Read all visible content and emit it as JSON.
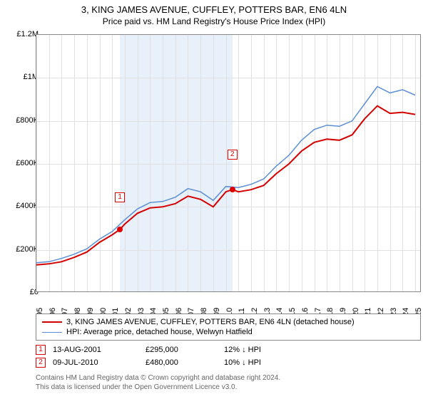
{
  "title": "3, KING JAMES AVENUE, CUFFLEY, POTTERS BAR, EN6 4LN",
  "subtitle": "Price paid vs. HM Land Registry's House Price Index (HPI)",
  "chart": {
    "type": "line",
    "background_color": "#ffffff",
    "grid_color": "#e0e0e0",
    "xlim": [
      1995,
      2025.5
    ],
    "ylim": [
      0,
      1200000
    ],
    "ytick_step": 200000,
    "yticks": [
      {
        "v": 0,
        "label": "£0"
      },
      {
        "v": 200000,
        "label": "£200K"
      },
      {
        "v": 400000,
        "label": "£400K"
      },
      {
        "v": 600000,
        "label": "£600K"
      },
      {
        "v": 800000,
        "label": "£800K"
      },
      {
        "v": 1000000,
        "label": "£1M"
      },
      {
        "v": 1200000,
        "label": "£1.2M"
      }
    ],
    "xticks": [
      1995,
      1996,
      1997,
      1998,
      1999,
      2000,
      2001,
      2002,
      2003,
      2004,
      2005,
      2006,
      2007,
      2008,
      2009,
      2010,
      2011,
      2012,
      2013,
      2014,
      2015,
      2016,
      2017,
      2018,
      2019,
      2020,
      2021,
      2022,
      2023,
      2024,
      2025
    ],
    "shaded_band": {
      "from": 2001.62,
      "to": 2010.52,
      "color": "#e8f0fa"
    },
    "series": [
      {
        "name": "address",
        "label": "3, KING JAMES AVENUE, CUFFLEY, POTTERS BAR, EN6 4LN (detached house)",
        "color": "#d40000",
        "line_width": 2,
        "data": [
          [
            1995,
            130000
          ],
          [
            1996,
            135000
          ],
          [
            1997,
            145000
          ],
          [
            1998,
            165000
          ],
          [
            1999,
            190000
          ],
          [
            2000,
            235000
          ],
          [
            2001,
            270000
          ],
          [
            2001.62,
            295000
          ],
          [
            2002,
            320000
          ],
          [
            2003,
            370000
          ],
          [
            2004,
            395000
          ],
          [
            2005,
            400000
          ],
          [
            2006,
            415000
          ],
          [
            2007,
            450000
          ],
          [
            2008,
            435000
          ],
          [
            2009,
            400000
          ],
          [
            2010,
            470000
          ],
          [
            2010.52,
            480000
          ],
          [
            2011,
            470000
          ],
          [
            2012,
            480000
          ],
          [
            2013,
            500000
          ],
          [
            2014,
            555000
          ],
          [
            2015,
            600000
          ],
          [
            2016,
            660000
          ],
          [
            2017,
            700000
          ],
          [
            2018,
            715000
          ],
          [
            2019,
            710000
          ],
          [
            2020,
            735000
          ],
          [
            2021,
            810000
          ],
          [
            2022,
            870000
          ],
          [
            2023,
            835000
          ],
          [
            2024,
            840000
          ],
          [
            2025,
            830000
          ]
        ]
      },
      {
        "name": "hpi",
        "label": "HPI: Average price, detached house, Welwyn Hatfield",
        "color": "#5b8fd6",
        "line_width": 1.5,
        "data": [
          [
            1995,
            140000
          ],
          [
            1996,
            145000
          ],
          [
            1997,
            160000
          ],
          [
            1998,
            180000
          ],
          [
            1999,
            205000
          ],
          [
            2000,
            250000
          ],
          [
            2001,
            285000
          ],
          [
            2002,
            340000
          ],
          [
            2003,
            390000
          ],
          [
            2004,
            420000
          ],
          [
            2005,
            425000
          ],
          [
            2006,
            445000
          ],
          [
            2007,
            485000
          ],
          [
            2008,
            470000
          ],
          [
            2009,
            430000
          ],
          [
            2010,
            495000
          ],
          [
            2011,
            490000
          ],
          [
            2012,
            505000
          ],
          [
            2013,
            530000
          ],
          [
            2014,
            590000
          ],
          [
            2015,
            640000
          ],
          [
            2016,
            710000
          ],
          [
            2017,
            760000
          ],
          [
            2018,
            780000
          ],
          [
            2019,
            775000
          ],
          [
            2020,
            800000
          ],
          [
            2021,
            880000
          ],
          [
            2022,
            960000
          ],
          [
            2023,
            930000
          ],
          [
            2024,
            945000
          ],
          [
            2025,
            920000
          ]
        ]
      }
    ],
    "sale_markers": [
      {
        "n": "1",
        "x": 2001.62,
        "y": 295000,
        "box_yoffset": -52
      },
      {
        "n": "2",
        "x": 2010.52,
        "y": 480000,
        "box_yoffset": -56
      }
    ]
  },
  "legend": {
    "items": [
      {
        "color": "#d40000",
        "width": 2,
        "label": "3, KING JAMES AVENUE, CUFFLEY, POTTERS BAR, EN6 4LN (detached house)"
      },
      {
        "color": "#5b8fd6",
        "width": 1.5,
        "label": "HPI: Average price, detached house, Welwyn Hatfield"
      }
    ]
  },
  "sales": [
    {
      "n": "1",
      "date": "13-AUG-2001",
      "price": "£295,000",
      "diff": "12% ↓ HPI"
    },
    {
      "n": "2",
      "date": "09-JUL-2010",
      "price": "£480,000",
      "diff": "10% ↓ HPI"
    }
  ],
  "footer_line1": "Contains HM Land Registry data © Crown copyright and database right 2024.",
  "footer_line2": "This data is licensed under the Open Government Licence v3.0."
}
